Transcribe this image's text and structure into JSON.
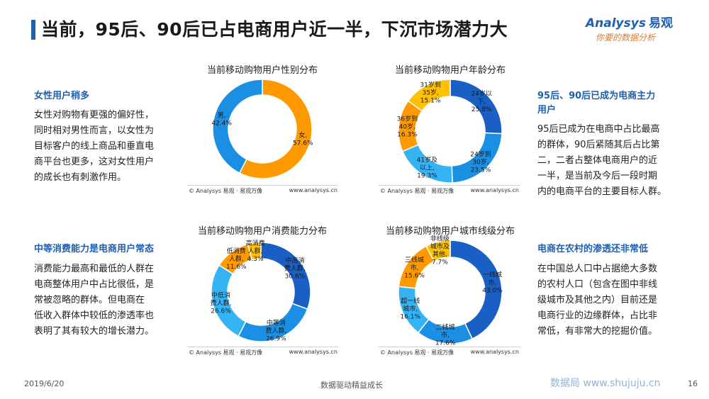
{
  "page": {
    "title": "当前，95后、90后已占电商用户近一半，下沉市场潜力大",
    "date": "2019/6/20",
    "slogan": "数据驱动精益成长",
    "page_number": "16",
    "watermark_site": "数据局 www.shujuju.cn"
  },
  "logo": {
    "brand_en": "Analysys",
    "brand_cn": "易观",
    "tagline": "你要的数据分析"
  },
  "left_texts": [
    {
      "heading": "女性用户稍多",
      "body": [
        "女性对购物有更强的偏好性，",
        "同时相对男性而言，以女性为",
        "目标客户的线上商品和垂直电",
        "商平台也更多，这对女性用户",
        "的成长也有刺激作用。"
      ]
    },
    {
      "heading": "中等消费能力是电商用户常态",
      "body": [
        "消费能力最高和最低的人群在",
        "电商整体用户中占比很低，是",
        "常被忽略的群体。但电商在",
        "低收入群体中较低的渗透率也",
        "表明了其有较大的增长潜力。"
      ]
    }
  ],
  "right_texts": [
    {
      "heading": [
        "95后、90后已成为电商主力",
        "用户"
      ],
      "body": [
        "95后已成为在电商中占比最高",
        "的群体，90后紧随其后占比第",
        "二，二者占整体电商用户的近",
        "一半，是当前及今后一段时期",
        "内的电商平台的主要目标人群。"
      ]
    },
    {
      "heading": [
        "电商在农村的渗透还非常低"
      ],
      "body": [
        "在中国总人口中占据绝大多数",
        "的农村人口（包含在图中非线",
        "级城市及其他之内）目前还是",
        "电商行业的边缘群体，占比非",
        "常低，有非常大的挖掘价值。"
      ]
    }
  ],
  "chart_source": "© Analysys 易观 · 易观万像",
  "chart_site": "www.analysys.cn",
  "chart_data": [
    {
      "type": "pie",
      "title": "当前移动购物用户性别分布",
      "slices": [
        {
          "label": [
            "女,",
            "57.6%"
          ],
          "value": 57.6,
          "color": "#ff9900"
        },
        {
          "label": [
            "男,",
            "42.4%"
          ],
          "value": 42.4,
          "color": "#1a8fe3"
        }
      ]
    },
    {
      "type": "pie",
      "title": "当前移动购物用户年龄分布",
      "slices": [
        {
          "label": [
            "24岁以",
            "下,",
            "25.8%"
          ],
          "value": 25.8,
          "color": "#1a5fc4"
        },
        {
          "label": [
            "24岁到",
            "30岁,",
            "23.5%"
          ],
          "value": 23.5,
          "color": "#1a8fe3"
        },
        {
          "label": [
            "41岁及",
            "以上,",
            "19.3%"
          ],
          "value": 19.3,
          "color": "#35b4f5"
        },
        {
          "label": [
            "36岁到",
            "40岁,",
            "16.3%"
          ],
          "value": 16.3,
          "color": "#ff9900"
        },
        {
          "label": [
            "31岁到",
            "35岁,",
            "15.1%"
          ],
          "value": 15.1,
          "color": "#ffc000"
        }
      ]
    },
    {
      "type": "pie",
      "title": "当前移动购物用户消费能力分布",
      "slices": [
        {
          "label": [
            "中高消",
            "费人群,",
            "30.6%"
          ],
          "value": 30.6,
          "color": "#1a5fc4"
        },
        {
          "label": [
            "中等消",
            "费人群,",
            "26.9%"
          ],
          "value": 26.9,
          "color": "#1a8fe3"
        },
        {
          "label": [
            "中低消",
            "费人群,",
            "26.6%"
          ],
          "value": 26.6,
          "color": "#35b4f5"
        },
        {
          "label": [
            "低消费",
            "人群,",
            "11.6%"
          ],
          "value": 11.6,
          "color": "#ff9900"
        },
        {
          "label": [
            "高消费",
            "人群,",
            "4.3%"
          ],
          "value": 4.3,
          "color": "#ffc000"
        }
      ]
    },
    {
      "type": "pie",
      "title": "当前移动购物用户城市线级分布",
      "slices": [
        {
          "label": [
            "一线城",
            "市,",
            "43.0%"
          ],
          "value": 43.0,
          "color": "#1a5fc4"
        },
        {
          "label": [
            "二线城",
            "市,",
            "17.6%"
          ],
          "value": 17.6,
          "color": "#1a8fe3"
        },
        {
          "label": [
            "超一线",
            "城市,",
            "16.1%"
          ],
          "value": 16.1,
          "color": "#35b4f5"
        },
        {
          "label": [
            "三线城",
            "市,",
            "15.6%"
          ],
          "value": 15.6,
          "color": "#ff9900"
        },
        {
          "label": [
            "非线级",
            "城市及",
            "其他,",
            "7.7%"
          ],
          "value": 7.7,
          "color": "#ffc000"
        }
      ]
    }
  ]
}
